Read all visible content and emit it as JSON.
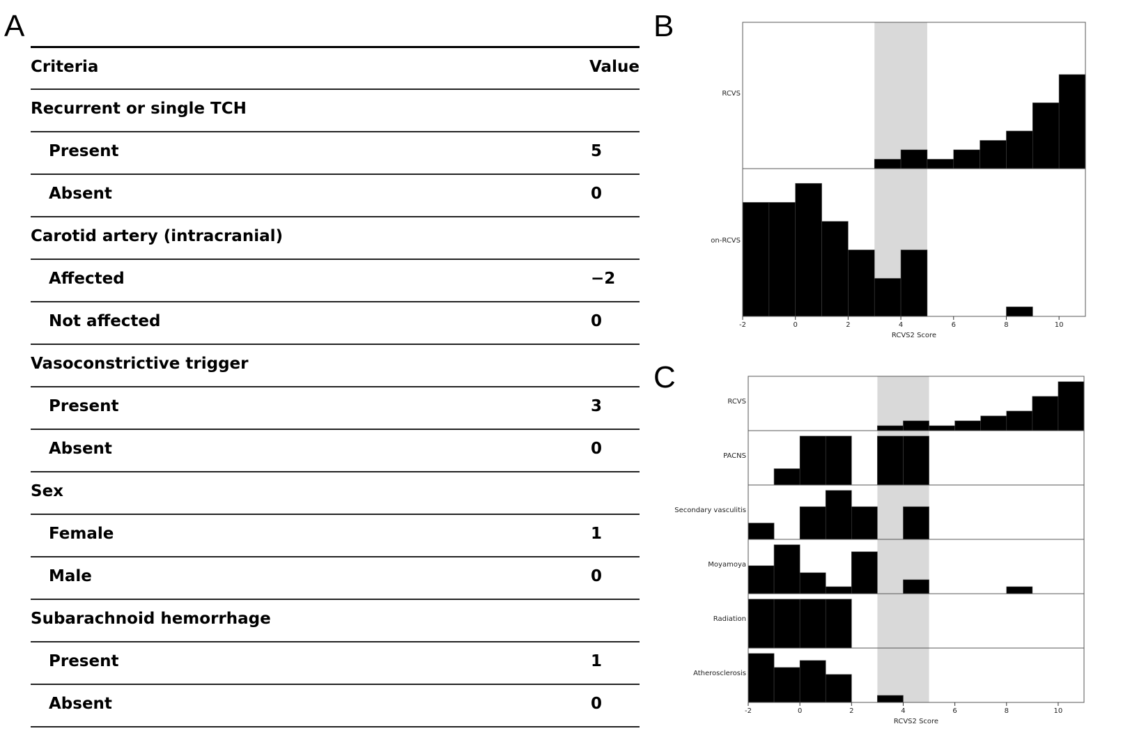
{
  "panels": {
    "a": "A",
    "b": "B",
    "c": "C"
  },
  "table": {
    "header": {
      "criteria": "Criteria",
      "value": "Value"
    },
    "rows": [
      {
        "label": "Recurrent or single TCH",
        "value": "",
        "sub": false
      },
      {
        "label": "Present",
        "value": "5",
        "sub": true
      },
      {
        "label": "Absent",
        "value": "0",
        "sub": true
      },
      {
        "label": "Carotid artery (intracranial)",
        "value": "",
        "sub": false
      },
      {
        "label": "Affected",
        "value": "−2",
        "sub": true
      },
      {
        "label": "Not affected",
        "value": "0",
        "sub": true
      },
      {
        "label": "Vasoconstrictive trigger",
        "value": "",
        "sub": false
      },
      {
        "label": "Present",
        "value": "3",
        "sub": true
      },
      {
        "label": "Absent",
        "value": "0",
        "sub": true
      },
      {
        "label": "Sex",
        "value": "",
        "sub": false
      },
      {
        "label": "Female",
        "value": "1",
        "sub": true
      },
      {
        "label": "Male",
        "value": "0",
        "sub": true
      },
      {
        "label": "Subarachnoid hemorrhage",
        "value": "",
        "sub": false
      },
      {
        "label": "Present",
        "value": "1",
        "sub": true
      },
      {
        "label": "Absent",
        "value": "0",
        "sub": true
      }
    ]
  },
  "chart_data": [
    {
      "type": "bar",
      "panel": "B",
      "title": "",
      "xlabel": "RCVS2 Score",
      "ylabel": "",
      "xlim": [
        -2,
        11
      ],
      "xticks": [
        -2,
        0,
        2,
        4,
        6,
        8,
        10
      ],
      "highlight_range": [
        3,
        5
      ],
      "highlight_color": "#d9d9d9",
      "bar_color": "#000000",
      "bin_edges": [
        -2,
        -1,
        0,
        1,
        2,
        3,
        4,
        5,
        6,
        7,
        8,
        9,
        10,
        11
      ],
      "series": [
        {
          "name": "RCVS",
          "values": [
            0,
            0,
            0,
            0,
            0,
            1,
            2,
            1,
            2,
            3,
            4,
            7,
            10
          ]
        },
        {
          "name": "Non-RCVS",
          "values": [
            12,
            12,
            14,
            10,
            7,
            4,
            7,
            0,
            0,
            0,
            1,
            0,
            0
          ]
        }
      ]
    },
    {
      "type": "bar",
      "panel": "C",
      "title": "",
      "xlabel": "RCVS2 Score",
      "ylabel": "",
      "xlim": [
        -2,
        11
      ],
      "xticks": [
        -2,
        0,
        2,
        4,
        6,
        8,
        10
      ],
      "highlight_range": [
        3,
        5
      ],
      "highlight_color": "#d9d9d9",
      "bar_color": "#000000",
      "bin_edges": [
        -2,
        -1,
        0,
        1,
        2,
        3,
        4,
        5,
        6,
        7,
        8,
        9,
        10,
        11
      ],
      "series": [
        {
          "name": "RCVS",
          "values": [
            0,
            0,
            0,
            0,
            0,
            1,
            2,
            1,
            2,
            3,
            4,
            7,
            10
          ]
        },
        {
          "name": "PACNS",
          "values": [
            0,
            1,
            3,
            3,
            0,
            3,
            3,
            0,
            0,
            0,
            0,
            0,
            0
          ]
        },
        {
          "name": "Secondary vasculitis",
          "values": [
            1,
            0,
            2,
            3,
            2,
            0,
            2,
            0,
            0,
            0,
            0,
            0,
            0
          ]
        },
        {
          "name": "Moyamoya",
          "values": [
            4,
            7,
            3,
            1,
            6,
            0,
            2,
            0,
            0,
            0,
            1,
            0,
            0
          ]
        },
        {
          "name": "Radiation",
          "values": [
            1,
            1,
            1,
            1,
            0,
            0,
            0,
            0,
            0,
            0,
            0,
            0,
            0
          ]
        },
        {
          "name": "Atherosclerosis",
          "values": [
            7,
            5,
            6,
            4,
            0,
            1,
            0,
            0,
            0,
            0,
            0,
            0,
            0
          ]
        }
      ]
    }
  ]
}
